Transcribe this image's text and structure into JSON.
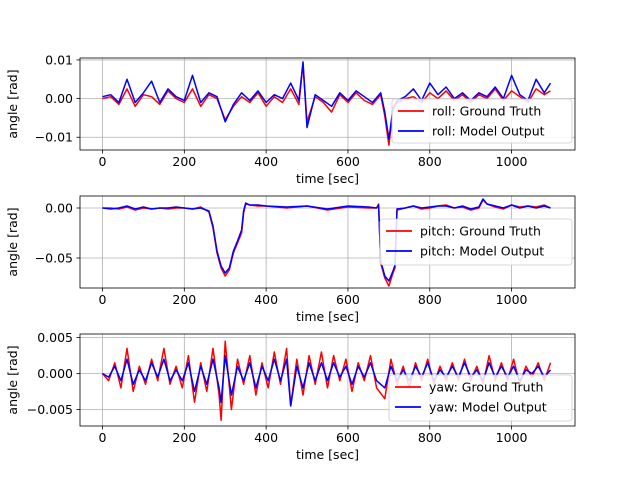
{
  "chart_data": [
    {
      "type": "line",
      "xlabel": "time [sec]",
      "ylabel": "angle [rad]",
      "xlim": [
        -55,
        1155
      ],
      "ylim": [
        -0.0133,
        0.0105
      ],
      "grid": true,
      "legend_position": "lower-right",
      "xticks": [
        0,
        200,
        400,
        600,
        800,
        1000
      ],
      "xtick_labels": [
        "0",
        "200",
        "400",
        "600",
        "800",
        "1000"
      ],
      "yticks": [
        -0.01,
        0.0,
        0.01
      ],
      "ytick_labels": [
        "−0.01",
        "0.00",
        "0.01"
      ],
      "series": [
        {
          "name": "roll: Ground Truth",
          "color": "#ff0000",
          "x": [
            0,
            20,
            40,
            60,
            80,
            100,
            120,
            140,
            160,
            180,
            200,
            220,
            240,
            260,
            280,
            300,
            320,
            340,
            360,
            380,
            400,
            420,
            440,
            460,
            480,
            490,
            500,
            520,
            540,
            560,
            580,
            600,
            620,
            640,
            660,
            680,
            690,
            700,
            710,
            720,
            740,
            760,
            780,
            800,
            820,
            840,
            860,
            880,
            900,
            920,
            940,
            960,
            980,
            1000,
            1020,
            1040,
            1060,
            1080,
            1095
          ],
          "values": [
            0.0,
            0.0005,
            -0.0015,
            0.0025,
            -0.002,
            0.001,
            0.0005,
            -0.0015,
            0.002,
            0.0,
            -0.001,
            0.0025,
            -0.002,
            0.001,
            0.0,
            -0.0055,
            -0.002,
            0.0005,
            -0.001,
            0.0015,
            -0.002,
            0.0005,
            -0.001,
            0.0025,
            -0.0015,
            0.009,
            -0.006,
            0.0005,
            -0.001,
            -0.0035,
            0.001,
            -0.001,
            0.0015,
            -0.0005,
            -0.0015,
            0.001,
            -0.0045,
            -0.012,
            -0.003,
            -0.001,
            0.0,
            0.0005,
            -0.001,
            0.0015,
            0.0,
            0.002,
            -0.0005,
            0.001,
            -0.001,
            0.001,
            0.0,
            0.0025,
            -0.0005,
            0.002,
            0.0005,
            -0.001,
            0.0025,
            0.001,
            0.002
          ]
        },
        {
          "name": "roll: Model Output",
          "color": "#0000ff",
          "x": [
            0,
            20,
            40,
            60,
            80,
            100,
            120,
            140,
            160,
            180,
            200,
            220,
            240,
            260,
            280,
            300,
            320,
            340,
            360,
            380,
            400,
            420,
            440,
            460,
            480,
            490,
            500,
            520,
            540,
            560,
            580,
            600,
            620,
            640,
            660,
            680,
            690,
            700,
            710,
            720,
            740,
            760,
            780,
            800,
            820,
            840,
            860,
            880,
            900,
            920,
            940,
            960,
            980,
            1000,
            1020,
            1040,
            1060,
            1080,
            1095
          ],
          "values": [
            0.0005,
            0.001,
            -0.001,
            0.005,
            -0.001,
            0.0015,
            0.0045,
            -0.001,
            0.0025,
            0.0005,
            -0.0005,
            0.006,
            -0.001,
            0.0015,
            0.0005,
            -0.006,
            -0.0015,
            0.0015,
            -0.0005,
            0.002,
            -0.001,
            0.001,
            0.0,
            0.004,
            -0.0005,
            0.0095,
            -0.0075,
            0.001,
            -0.0005,
            -0.002,
            0.0015,
            -0.0005,
            0.002,
            0.0005,
            -0.001,
            0.0015,
            -0.0035,
            -0.0105,
            -0.0025,
            -0.0005,
            0.0005,
            0.0025,
            -0.0005,
            0.004,
            0.001,
            0.003,
            0.0,
            0.0015,
            -0.0005,
            0.0015,
            0.0005,
            0.003,
            0.0,
            0.006,
            0.001,
            -0.0005,
            0.005,
            0.0015,
            0.004
          ]
        }
      ]
    },
    {
      "type": "line",
      "xlabel": "time [sec]",
      "ylabel": "angle [rad]",
      "xlim": [
        -55,
        1155
      ],
      "ylim": [
        -0.08,
        0.012
      ],
      "grid": true,
      "legend_position": "center-right",
      "xticks": [
        0,
        200,
        400,
        600,
        800,
        1000
      ],
      "xtick_labels": [
        "0",
        "200",
        "400",
        "600",
        "800",
        "1000"
      ],
      "yticks": [
        -0.05,
        0.0
      ],
      "ytick_labels": [
        "−0.05",
        "0.00"
      ],
      "series": [
        {
          "name": "pitch: Ground Truth",
          "color": "#ff0000",
          "x": [
            0,
            20,
            40,
            60,
            80,
            100,
            120,
            140,
            160,
            180,
            200,
            220,
            240,
            260,
            270,
            280,
            290,
            300,
            310,
            320,
            330,
            340,
            345,
            350,
            360,
            380,
            400,
            450,
            500,
            550,
            600,
            650,
            670,
            675,
            680,
            690,
            700,
            710,
            715,
            720,
            740,
            760,
            780,
            800,
            820,
            840,
            860,
            880,
            900,
            920,
            930,
            940,
            960,
            980,
            1000,
            1020,
            1040,
            1060,
            1080,
            1095
          ],
          "values": [
            0.0,
            0.0,
            -0.001,
            0.001,
            -0.002,
            0.0,
            -0.001,
            0.0,
            -0.001,
            0.0,
            0.0,
            -0.001,
            0.001,
            -0.004,
            -0.02,
            -0.045,
            -0.06,
            -0.068,
            -0.062,
            -0.045,
            -0.035,
            -0.025,
            -0.005,
            0.004,
            0.003,
            0.002,
            0.002,
            0.0,
            0.002,
            -0.002,
            0.001,
            0.0,
            0.0,
            0.004,
            -0.055,
            -0.07,
            -0.078,
            -0.065,
            -0.06,
            -0.002,
            0.0,
            0.002,
            -0.001,
            0.0,
            0.002,
            0.003,
            0.0,
            0.001,
            -0.002,
            0.0,
            0.008,
            0.004,
            0.001,
            -0.001,
            0.003,
            0.001,
            0.002,
            0.001,
            0.003,
            0.0
          ]
        },
        {
          "name": "pitch: Model Output",
          "color": "#0000ff",
          "x": [
            0,
            20,
            40,
            60,
            80,
            100,
            120,
            140,
            160,
            180,
            200,
            220,
            240,
            260,
            270,
            280,
            290,
            300,
            310,
            320,
            330,
            340,
            345,
            350,
            360,
            380,
            400,
            450,
            500,
            550,
            600,
            650,
            670,
            675,
            680,
            690,
            700,
            710,
            715,
            720,
            740,
            760,
            780,
            800,
            820,
            840,
            860,
            880,
            900,
            920,
            930,
            940,
            960,
            980,
            1000,
            1020,
            1040,
            1060,
            1080,
            1095
          ],
          "values": [
            0.0,
            -0.001,
            0.0,
            0.002,
            -0.001,
            0.001,
            -0.001,
            0.0,
            0.0,
            0.001,
            0.0,
            -0.001,
            0.0,
            -0.003,
            -0.018,
            -0.043,
            -0.058,
            -0.065,
            -0.06,
            -0.043,
            -0.033,
            -0.022,
            -0.003,
            0.005,
            0.003,
            0.003,
            0.002,
            0.001,
            0.002,
            -0.001,
            0.002,
            0.001,
            0.0,
            0.003,
            -0.053,
            -0.068,
            -0.073,
            -0.063,
            -0.057,
            -0.001,
            0.0,
            0.002,
            0.0,
            0.001,
            0.002,
            0.002,
            0.0,
            0.002,
            -0.001,
            0.001,
            0.009,
            0.004,
            0.002,
            0.0,
            0.003,
            0.0,
            0.002,
            0.0,
            0.002,
            0.0
          ]
        }
      ]
    },
    {
      "type": "line",
      "xlabel": "time [sec]",
      "ylabel": "angle [rad]",
      "xlim": [
        -55,
        1155
      ],
      "ylim": [
        -0.0073,
        0.0055
      ],
      "grid": true,
      "legend_position": "lower-right",
      "xticks": [
        0,
        200,
        400,
        600,
        800,
        1000
      ],
      "xtick_labels": [
        "0",
        "200",
        "400",
        "600",
        "800",
        "1000"
      ],
      "yticks": [
        -0.005,
        0.0,
        0.005
      ],
      "ytick_labels": [
        "−0.005",
        "0.000",
        "0.005"
      ],
      "series": [
        {
          "name": "yaw: Ground Truth",
          "color": "#ff0000",
          "x": [
            0,
            15,
            30,
            45,
            60,
            75,
            90,
            105,
            120,
            135,
            150,
            165,
            180,
            195,
            210,
            225,
            240,
            255,
            270,
            285,
            290,
            300,
            315,
            330,
            345,
            360,
            375,
            390,
            405,
            420,
            435,
            450,
            460,
            475,
            490,
            505,
            520,
            535,
            550,
            565,
            580,
            595,
            610,
            625,
            640,
            655,
            670,
            690,
            705,
            720,
            735,
            750,
            765,
            780,
            795,
            810,
            825,
            840,
            855,
            870,
            885,
            900,
            915,
            930,
            945,
            960,
            975,
            990,
            1005,
            1020,
            1035,
            1050,
            1065,
            1080,
            1095
          ],
          "values": [
            0.0,
            -0.001,
            0.0015,
            -0.002,
            0.0035,
            -0.0025,
            0.001,
            -0.0015,
            0.002,
            -0.001,
            0.0035,
            -0.0015,
            0.001,
            -0.002,
            0.0025,
            -0.004,
            0.0015,
            -0.0025,
            0.0035,
            -0.003,
            -0.0065,
            0.0045,
            -0.005,
            0.002,
            -0.0015,
            0.0025,
            -0.003,
            0.0015,
            -0.002,
            0.003,
            -0.0015,
            0.0035,
            -0.0045,
            0.002,
            -0.003,
            0.0025,
            -0.0015,
            0.003,
            -0.002,
            0.0025,
            -0.001,
            0.002,
            -0.0025,
            0.0015,
            -0.001,
            0.0025,
            -0.002,
            -0.0035,
            0.002,
            -0.0015,
            0.001,
            -0.002,
            0.0015,
            -0.001,
            0.002,
            -0.0015,
            0.001,
            -0.001,
            0.0015,
            -0.001,
            0.002,
            -0.001,
            0.001,
            -0.0015,
            0.0025,
            -0.001,
            0.0015,
            -0.001,
            0.002,
            -0.0015,
            0.001,
            -0.0005,
            0.0015,
            -0.001,
            0.0015
          ]
        },
        {
          "name": "yaw: Model Output",
          "color": "#0000ff",
          "x": [
            0,
            15,
            30,
            45,
            60,
            75,
            90,
            105,
            120,
            135,
            150,
            165,
            180,
            195,
            210,
            225,
            240,
            255,
            270,
            285,
            290,
            300,
            315,
            330,
            345,
            360,
            375,
            390,
            405,
            420,
            435,
            450,
            460,
            475,
            490,
            505,
            520,
            535,
            550,
            565,
            580,
            595,
            610,
            625,
            640,
            655,
            670,
            690,
            705,
            720,
            735,
            750,
            765,
            780,
            795,
            810,
            825,
            840,
            855,
            870,
            885,
            900,
            915,
            930,
            945,
            960,
            975,
            990,
            1005,
            1020,
            1035,
            1050,
            1065,
            1080,
            1095
          ],
          "values": [
            0.0,
            -0.0005,
            0.001,
            -0.001,
            0.002,
            -0.0015,
            0.0005,
            -0.001,
            0.0015,
            -0.0005,
            0.002,
            -0.001,
            0.0005,
            -0.001,
            0.0015,
            -0.0025,
            0.001,
            -0.0015,
            0.002,
            -0.002,
            -0.004,
            0.0025,
            -0.003,
            0.001,
            -0.001,
            0.0015,
            -0.002,
            0.001,
            -0.001,
            0.002,
            -0.001,
            0.002,
            -0.0045,
            0.001,
            -0.002,
            0.0015,
            -0.001,
            0.0015,
            -0.001,
            0.0015,
            -0.0005,
            0.001,
            -0.0015,
            0.001,
            -0.0005,
            0.0015,
            -0.001,
            -0.002,
            0.001,
            -0.001,
            0.0005,
            -0.001,
            0.001,
            -0.0005,
            0.0015,
            -0.001,
            0.0005,
            -0.0005,
            0.001,
            -0.0005,
            0.0015,
            -0.0005,
            0.0005,
            -0.001,
            0.0015,
            -0.0005,
            0.001,
            -0.0005,
            0.001,
            -0.001,
            0.0005,
            0.0,
            0.001,
            -0.0005,
            0.0005
          ]
        }
      ]
    }
  ]
}
